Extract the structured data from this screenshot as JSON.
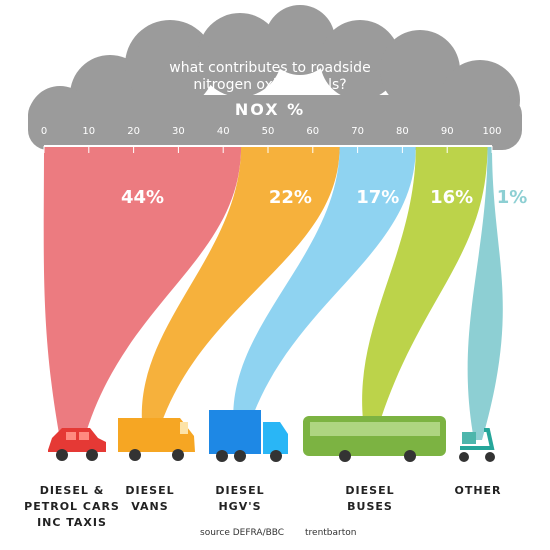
{
  "chart_data": {
    "type": "flow",
    "title": "what contributes to roadside nitrogen oxide levels?",
    "subtitle": "NOX %",
    "xlim": [
      0,
      100
    ],
    "xticks": [
      0,
      10,
      20,
      30,
      40,
      50,
      60,
      70,
      80,
      90,
      100
    ],
    "categories": [
      "DIESEL & PETROL CARS INC TAXIS",
      "DIESEL VANS",
      "DIESEL HGV'S",
      "DIESEL BUSES",
      "OTHER"
    ],
    "values": [
      44,
      22,
      17,
      16,
      1
    ],
    "value_labels": [
      "44%",
      "22%",
      "17%",
      "16%",
      "1%"
    ],
    "colors": [
      "#ec7b80",
      "#f6b13c",
      "#8fd3f1",
      "#bcd34a",
      "#8dcfd3"
    ],
    "source": "source DEFRA/BBC",
    "credit": "trentbarton"
  }
}
